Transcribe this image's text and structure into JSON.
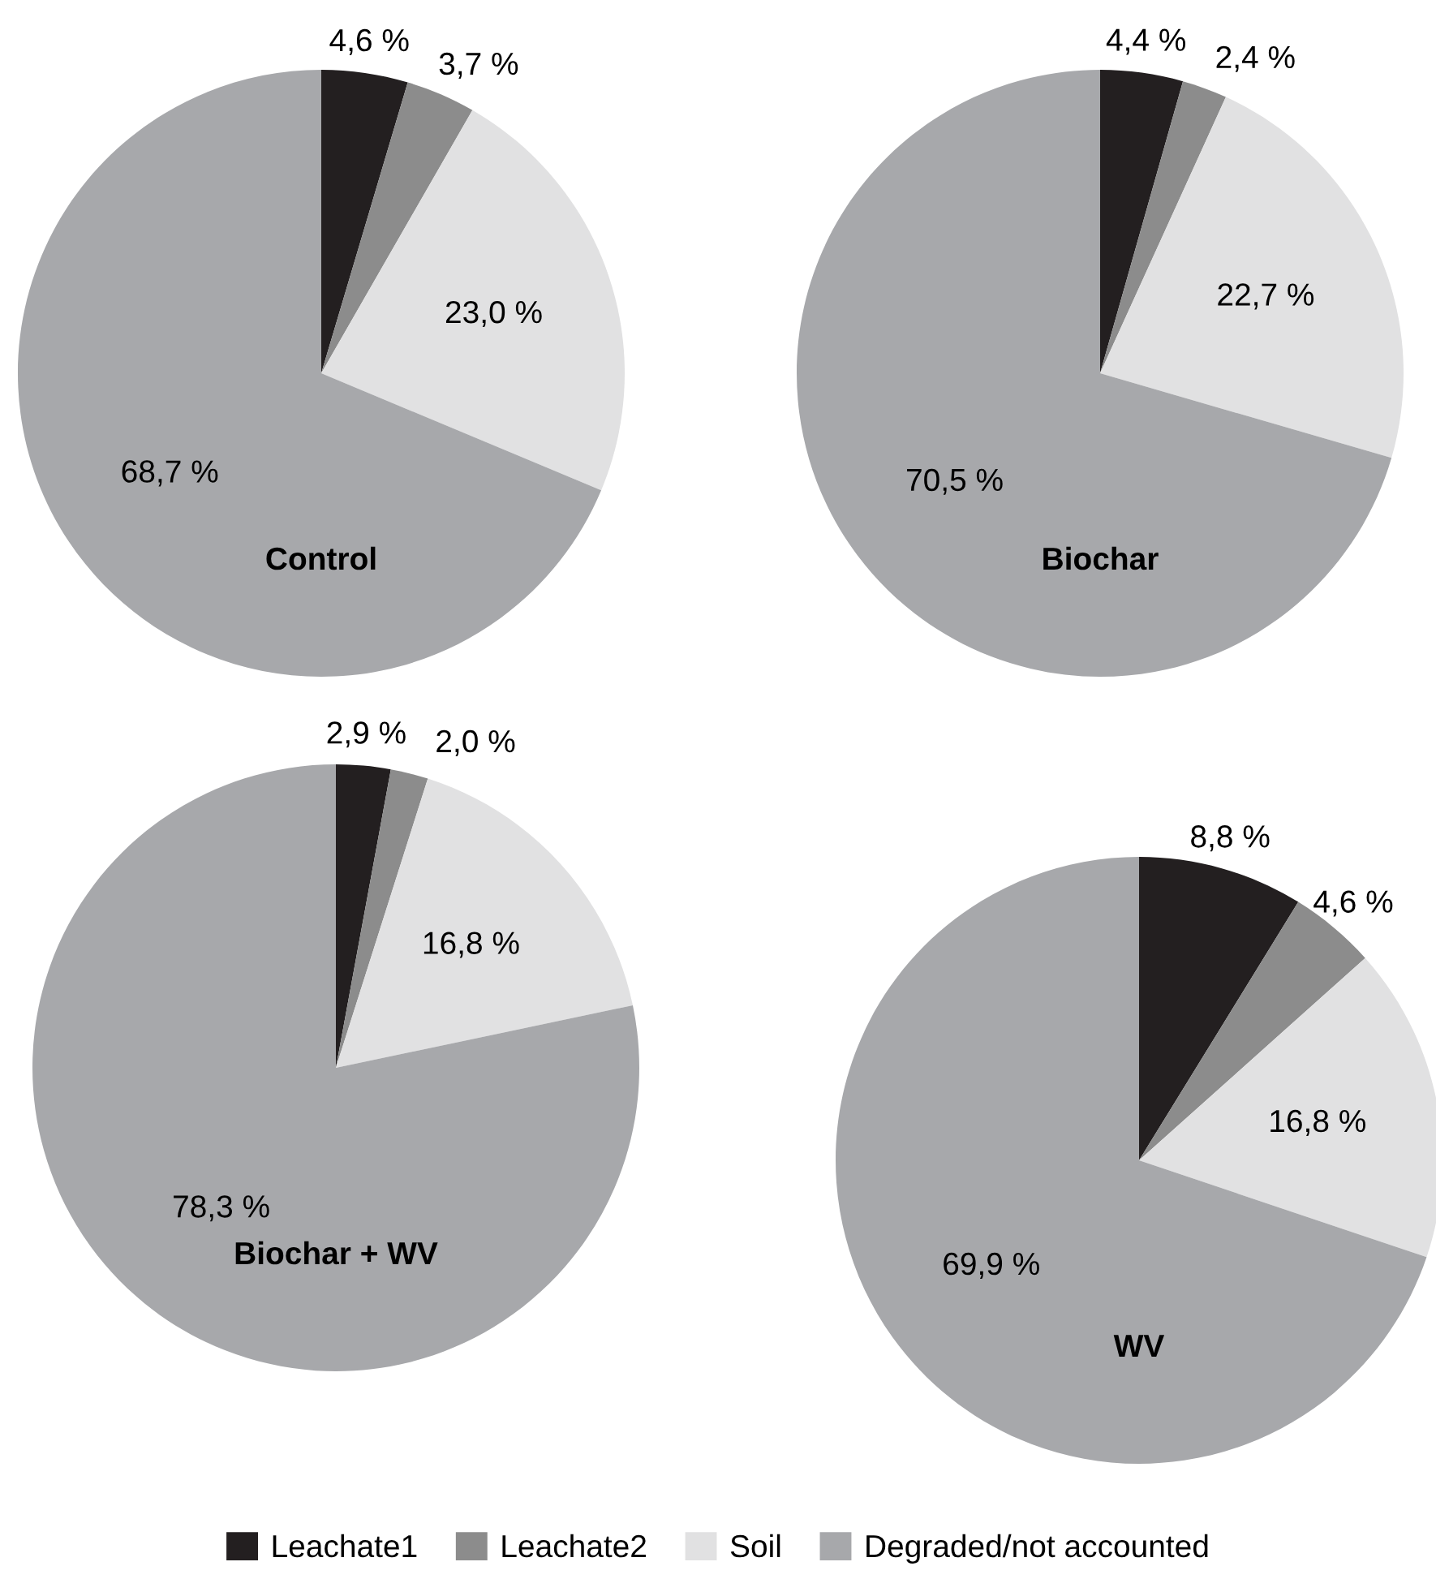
{
  "chart_data": [
    {
      "type": "pie",
      "title": "Control",
      "categories": [
        "Leachate1",
        "Leachate2",
        "Soil",
        "Degraded/not accounted"
      ],
      "values": [
        4.6,
        3.7,
        23.0,
        68.7
      ],
      "value_labels": [
        "4,6 %",
        "3,7 %",
        "23,0 %",
        "68,7 %"
      ],
      "colors": [
        "#231f20",
        "#8c8c8c",
        "#e1e1e2",
        "#a7a8ab"
      ],
      "legend": "bottom"
    },
    {
      "type": "pie",
      "title": "Biochar",
      "categories": [
        null,
        null,
        null,
        null
      ],
      "values": [
        4.4,
        2.4,
        22.7,
        70.5
      ],
      "value_labels": [
        "4,4 %",
        "2,4 %",
        "22,7 %",
        "70,5 %"
      ],
      "colors": [
        "#231f20",
        "#8c8c8c",
        "#e1e1e2",
        "#a7a8ab"
      ]
    },
    {
      "type": "pie",
      "title": "Biochar + WV",
      "categories": [
        null,
        null,
        null,
        null
      ],
      "values": [
        2.9,
        2.0,
        16.8,
        78.3
      ],
      "value_labels": [
        "2,9 %",
        "2,0 %",
        "16,8 %",
        "78,3 %"
      ],
      "colors": [
        "#231f20",
        "#8c8c8c",
        "#e1e1e2",
        "#a7a8ab"
      ]
    },
    {
      "type": "pie",
      "title": "WV",
      "categories": [
        null,
        null,
        null,
        null
      ],
      "values": [
        8.8,
        4.6,
        16.8,
        69.9
      ],
      "value_labels": [
        "8,8 %",
        "4,6 %",
        "16,8 %",
        "69,9 %"
      ],
      "colors": [
        "#231f20",
        "#8c8c8c",
        "#e1e1e2",
        "#a7a8ab"
      ]
    }
  ]
}
